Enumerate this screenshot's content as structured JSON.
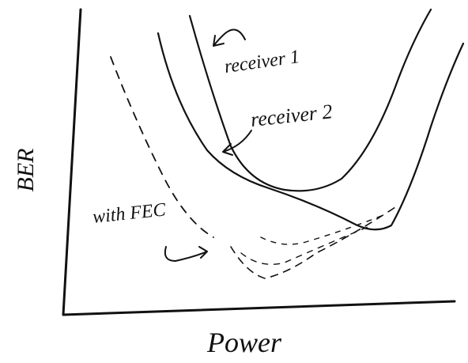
{
  "axes": {
    "x_label": "Power",
    "y_label": "BER"
  },
  "curves": [
    {
      "label": "receiver 1"
    },
    {
      "label": "receiver 2"
    },
    {
      "label": "with FEC"
    }
  ]
}
